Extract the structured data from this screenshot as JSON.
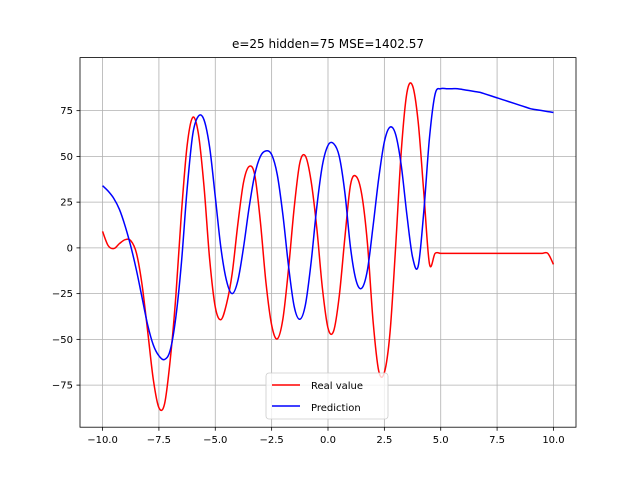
{
  "chart_data": {
    "type": "line",
    "title": "e=25 hidden=75 MSE=1402.57",
    "xlabel": "",
    "ylabel": "",
    "xlim": [
      -11,
      11
    ],
    "ylim": [
      -98,
      104
    ],
    "grid": true,
    "legend_placement": "bottom-center",
    "x_ticks": [
      -10,
      -7.5,
      -5,
      -2.5,
      0,
      2.5,
      5,
      7.5,
      10
    ],
    "x_tick_labels": [
      "−10.0",
      "−7.5",
      "−5.0",
      "−2.5",
      "0.0",
      "2.5",
      "5.0",
      "7.5",
      "10.0"
    ],
    "y_ticks": [
      -75,
      -50,
      -25,
      0,
      25,
      50,
      75
    ],
    "y_tick_labels": [
      "−75",
      "−50",
      "−25",
      "0",
      "25",
      "50",
      "75"
    ],
    "series": [
      {
        "name": "Real value",
        "color": "#ff0000",
        "x": [
          -10.0,
          -9.75,
          -9.5,
          -9.25,
          -9.0,
          -8.75,
          -8.5,
          -8.25,
          -8.0,
          -7.75,
          -7.5,
          -7.25,
          -7.0,
          -6.75,
          -6.5,
          -6.25,
          -6.0,
          -5.75,
          -5.5,
          -5.25,
          -5.0,
          -4.75,
          -4.5,
          -4.25,
          -4.0,
          -3.75,
          -3.5,
          -3.25,
          -3.0,
          -2.75,
          -2.5,
          -2.25,
          -2.0,
          -1.75,
          -1.5,
          -1.25,
          -1.0,
          -0.75,
          -0.5,
          -0.25,
          0.0,
          0.25,
          0.5,
          0.75,
          1.0,
          1.25,
          1.5,
          1.75,
          2.0,
          2.25,
          2.5,
          2.75,
          3.0,
          3.25,
          3.5,
          3.75,
          4.0,
          4.25,
          4.5,
          4.75,
          5.0,
          5.25,
          5.5,
          5.75,
          6.0,
          6.25,
          6.5,
          6.75,
          7.0,
          7.25,
          7.5,
          7.75,
          8.0,
          8.25,
          8.5,
          8.75,
          9.0,
          9.25,
          9.5,
          9.75,
          10.0
        ],
        "values": [
          9.02,
          1.23,
          -0.37,
          2.35,
          4.48,
          3.98,
          -2.71,
          -19.9,
          -45.41,
          -71.8,
          -87.34,
          -85.27,
          -61.44,
          -26.54,
          19.2,
          55.77,
          71.3,
          62.51,
          33.66,
          -6.14,
          -32.31,
          -39.22,
          -30.57,
          -13.98,
          12.85,
          35.59,
          44.46,
          39.92,
          14.4,
          -19.18,
          -42.18,
          -49.76,
          -38.8,
          -11.34,
          21.88,
          46.45,
          50.16,
          36.55,
          11.16,
          -21.82,
          -43.81,
          -45.42,
          -26.27,
          5.78,
          34.59,
          39.07,
          28.99,
          2.4,
          -40.1,
          -67.24,
          -68.12,
          -46.38,
          0.61,
          52.82,
          84.78,
          88.65,
          68.82,
          30.08,
          -8.7,
          -3.0,
          -3.0,
          -3.0,
          -3.0,
          -3.0,
          -3.0,
          -3.0,
          -3.0,
          -3.0,
          -3.0,
          -3.0,
          -3.0,
          -3.0,
          -3.0,
          -3.0,
          -3.0,
          -3.0,
          -3.0,
          -3.0,
          -3.0,
          -3.0,
          -9.0
        ]
      },
      {
        "name": "Prediction",
        "color": "#0000ff",
        "x": [
          -10.0,
          -9.75,
          -9.5,
          -9.25,
          -9.0,
          -8.75,
          -8.5,
          -8.25,
          -8.0,
          -7.75,
          -7.5,
          -7.25,
          -7.0,
          -6.75,
          -6.5,
          -6.25,
          -6.0,
          -5.75,
          -5.5,
          -5.25,
          -5.0,
          -4.75,
          -4.5,
          -4.25,
          -4.0,
          -3.75,
          -3.5,
          -3.25,
          -3.0,
          -2.75,
          -2.5,
          -2.25,
          -2.0,
          -1.75,
          -1.5,
          -1.25,
          -1.0,
          -0.75,
          -0.5,
          -0.25,
          0.0,
          0.25,
          0.5,
          0.75,
          1.0,
          1.25,
          1.5,
          1.75,
          2.0,
          2.25,
          2.5,
          2.75,
          3.0,
          3.25,
          3.5,
          3.75,
          4.0,
          4.25,
          4.5,
          4.75,
          5.0,
          5.25,
          5.5,
          5.75,
          6.0,
          6.25,
          6.5,
          6.75,
          7.0,
          7.25,
          7.5,
          7.75,
          8.0,
          8.25,
          8.5,
          8.75,
          9.0,
          9.25,
          9.5,
          9.75,
          10.0
        ],
        "values": [
          34.0,
          31.0,
          27.0,
          21.0,
          12.0,
          1.0,
          -12.0,
          -27.0,
          -42.0,
          -53.0,
          -59.0,
          -61.0,
          -56.0,
          -38.0,
          -8.0,
          32.0,
          62.0,
          72.0,
          70.0,
          55.0,
          28.0,
          0.0,
          -18.0,
          -25.0,
          -18.0,
          0.0,
          22.0,
          40.0,
          50.0,
          53.0,
          51.0,
          40.0,
          18.0,
          -10.0,
          -32.0,
          -39.0,
          -31.0,
          -8.0,
          22.0,
          45.0,
          56.0,
          57.0,
          50.0,
          30.0,
          0.0,
          -18.0,
          -22.0,
          -12.0,
          12.0,
          38.0,
          58.0,
          66.0,
          62.0,
          45.0,
          18.0,
          -5.0,
          -10.0,
          20.0,
          60.0,
          84.0,
          87.0,
          87.0,
          87.0,
          87.0,
          86.5,
          86.0,
          85.5,
          85.0,
          84.0,
          83.0,
          82.0,
          81.0,
          80.0,
          79.0,
          78.0,
          77.0,
          76.0,
          75.5,
          75.0,
          74.5,
          74.0
        ]
      }
    ]
  }
}
